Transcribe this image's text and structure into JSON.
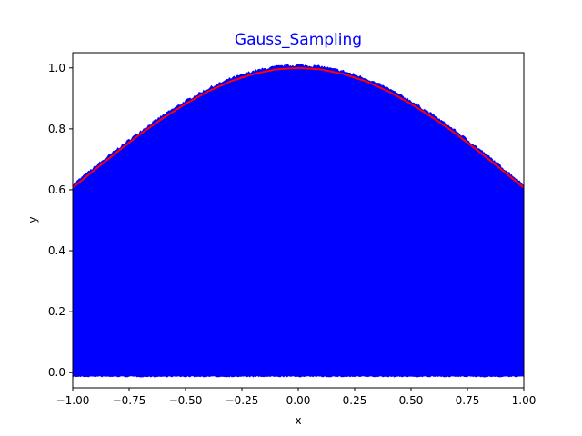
{
  "chart_data": {
    "type": "area",
    "title": "Gauss_Sampling",
    "xlabel": "x",
    "ylabel": "y",
    "xlim": [
      -1.0,
      1.0
    ],
    "ylim": [
      -0.05,
      1.05
    ],
    "x_ticks": [
      -1.0,
      -0.75,
      -0.5,
      -0.25,
      0.0,
      0.25,
      0.5,
      0.75,
      1.0
    ],
    "x_tick_labels": [
      "−1.00",
      "−0.75",
      "−0.50",
      "−0.25",
      "0.00",
      "0.25",
      "0.50",
      "0.75",
      "1.00"
    ],
    "y_ticks": [
      0.0,
      0.2,
      0.4,
      0.6,
      0.8,
      1.0
    ],
    "y_tick_labels": [
      "0.0",
      "0.2",
      "0.4",
      "0.6",
      "0.8",
      "1.0"
    ],
    "grid": false,
    "series": [
      {
        "kind": "sampled-area",
        "color": "#0000ff",
        "x": [
          -1.0,
          -0.9,
          -0.8,
          -0.7,
          -0.6,
          -0.5,
          -0.4,
          -0.3,
          -0.2,
          -0.1,
          0.0,
          0.1,
          0.2,
          0.3,
          0.4,
          0.5,
          0.6,
          0.7,
          0.8,
          0.9,
          1.0
        ],
        "y_top": [
          0.62,
          0.67,
          0.73,
          0.79,
          0.84,
          0.89,
          0.93,
          0.96,
          0.99,
          1.005,
          1.01,
          1.005,
          0.99,
          0.96,
          0.93,
          0.89,
          0.84,
          0.79,
          0.73,
          0.67,
          0.62
        ],
        "y_bottom": -0.01
      },
      {
        "kind": "curve",
        "color": "#ff0000",
        "x": [
          -1.0,
          -0.9,
          -0.8,
          -0.7,
          -0.6,
          -0.5,
          -0.4,
          -0.3,
          -0.2,
          -0.1,
          0.0,
          0.1,
          0.2,
          0.3,
          0.4,
          0.5,
          0.6,
          0.7,
          0.8,
          0.9,
          1.0
        ],
        "y": [
          0.607,
          0.667,
          0.726,
          0.783,
          0.835,
          0.882,
          0.923,
          0.956,
          0.98,
          0.995,
          1.0,
          0.995,
          0.98,
          0.956,
          0.923,
          0.882,
          0.835,
          0.783,
          0.726,
          0.667,
          0.607
        ]
      }
    ],
    "colors": {
      "title": "#0000ff",
      "fill": "#0000ff",
      "curve": "#ff0000",
      "axes": "#000000"
    }
  }
}
